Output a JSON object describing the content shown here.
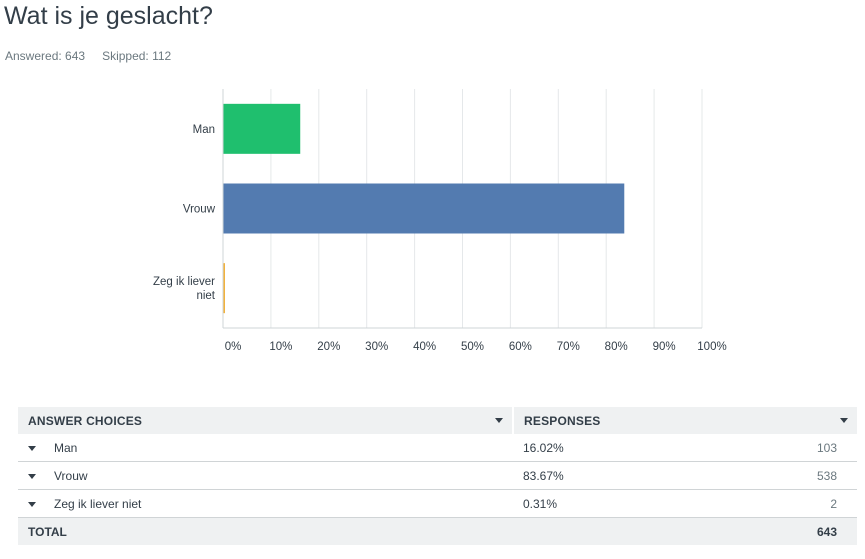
{
  "question": {
    "title": "Wat is je geslacht?",
    "answered_label": "Answered: 643",
    "skipped_label": "Skipped: 112"
  },
  "chart_data": {
    "type": "bar",
    "orientation": "horizontal",
    "categories": [
      "Man",
      "Vrouw",
      "Zeg ik liever niet"
    ],
    "values": [
      16.02,
      83.67,
      0.31
    ],
    "unit": "%",
    "xlim": [
      0,
      100
    ],
    "xticks": [
      "0%",
      "10%",
      "20%",
      "30%",
      "40%",
      "50%",
      "60%",
      "70%",
      "80%",
      "90%",
      "100%"
    ],
    "colors": [
      "#1fbf6e",
      "#537bb0",
      "#f2b13a"
    ],
    "grid": true,
    "title": "",
    "xlabel": "",
    "ylabel": ""
  },
  "table": {
    "header_choices": "ANSWER CHOICES",
    "header_responses": "RESPONSES",
    "rows": [
      {
        "choice": "Man",
        "percent": "16.02%",
        "count": "103"
      },
      {
        "choice": "Vrouw",
        "percent": "83.67%",
        "count": "538"
      },
      {
        "choice": "Zeg ik liever niet",
        "percent": "0.31%",
        "count": "2"
      }
    ],
    "total_label": "TOTAL",
    "total_count": "643"
  }
}
